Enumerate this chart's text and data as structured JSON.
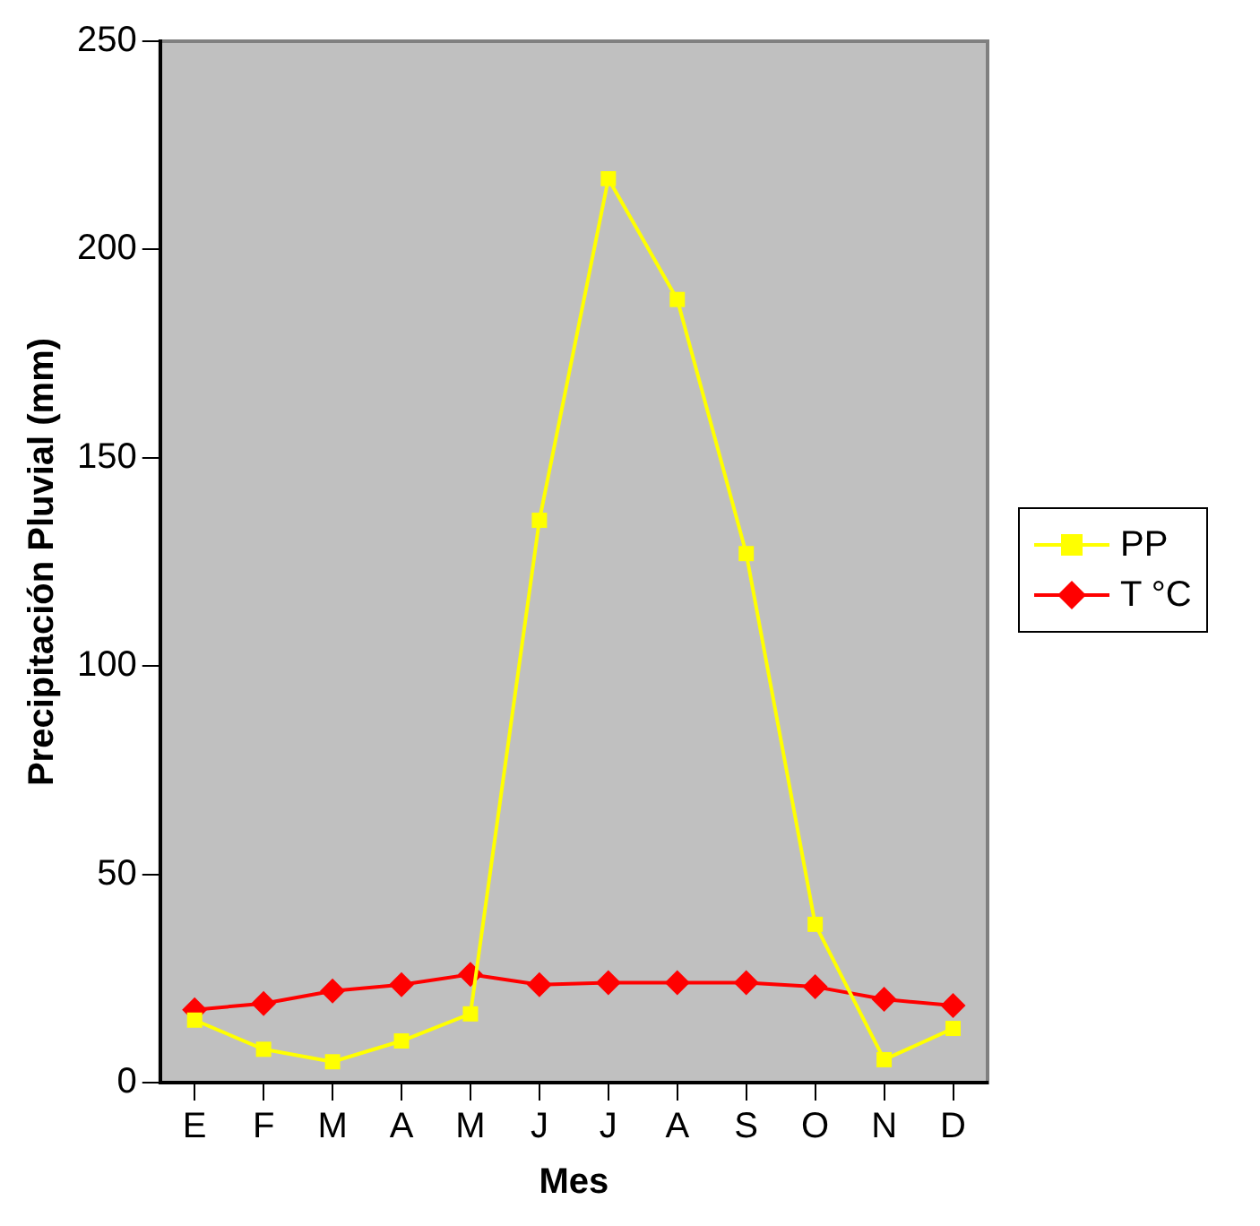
{
  "chart_data": {
    "type": "line",
    "xlabel": "Mes",
    "ylabel": "Precipitación Pluvial (mm)",
    "categories": [
      "E",
      "F",
      "M",
      "A",
      "M",
      "J",
      "J",
      "A",
      "S",
      "O",
      "N",
      "D"
    ],
    "series": [
      {
        "name": "PP",
        "color": "#ffff00",
        "marker": "square",
        "values": [
          15,
          8,
          5,
          10,
          16.5,
          135,
          217,
          188,
          127,
          38,
          5.5,
          13
        ]
      },
      {
        "name": "T °C",
        "color": "#ff0000",
        "marker": "diamond",
        "values": [
          17.5,
          19,
          22,
          23.5,
          26,
          23.5,
          24,
          24,
          24,
          23,
          20,
          18.5
        ]
      }
    ],
    "ylim": [
      0,
      250
    ],
    "yticks": [
      0,
      50,
      100,
      150,
      200,
      250
    ],
    "grid": false,
    "legend": "right",
    "line_style": "solid"
  }
}
